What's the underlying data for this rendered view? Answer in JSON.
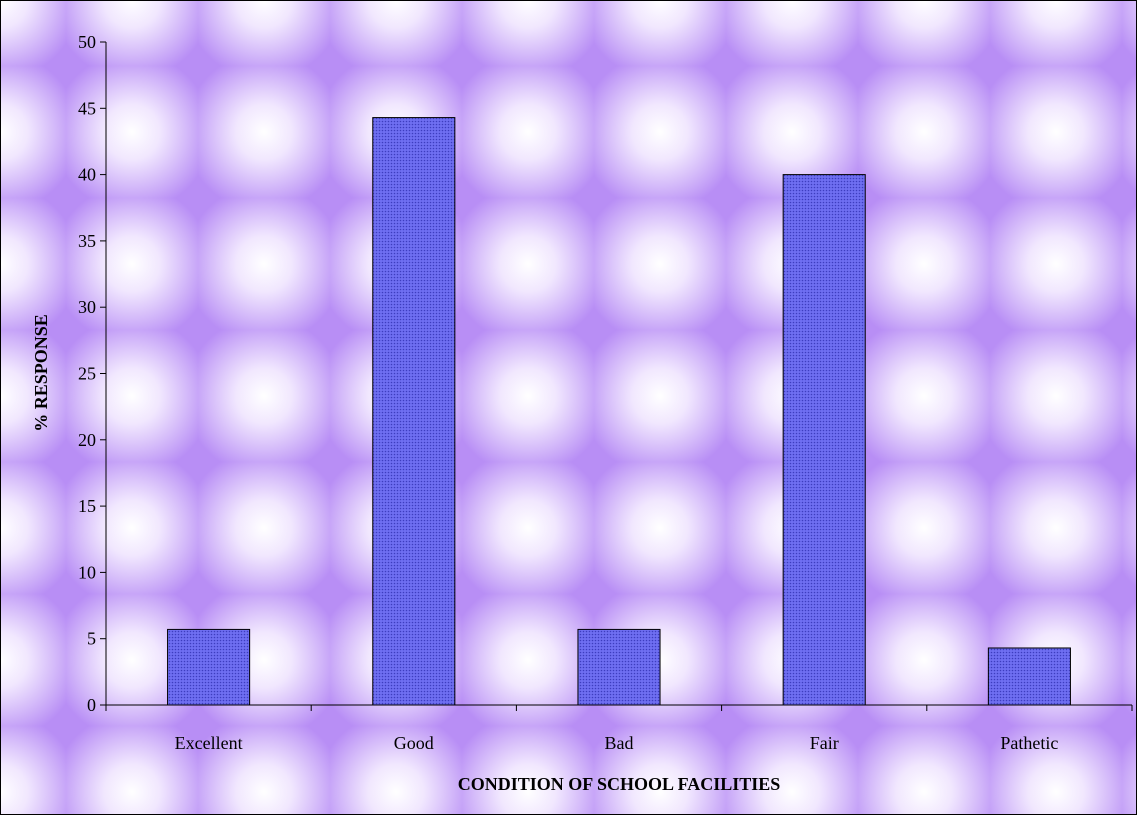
{
  "chart_data": {
    "type": "bar",
    "categories": [
      "Excellent",
      "Good",
      "Bad",
      "Fair",
      "Pathetic"
    ],
    "values": [
      5.7,
      44.3,
      5.7,
      40.0,
      4.3
    ],
    "xlabel": "CONDITION OF SCHOOL FACILITIES",
    "ylabel": "% RESPONSE",
    "ylim": [
      0,
      50
    ],
    "yticks": [
      0,
      5,
      10,
      15,
      20,
      25,
      30,
      35,
      40,
      45,
      50
    ],
    "grid": false,
    "legend": "none",
    "colors": {
      "bar_fill": "#6b6bf0",
      "bar_stroke": "#000000",
      "background_base": "#c8a8f8",
      "background_glow": "#ffffff"
    }
  }
}
